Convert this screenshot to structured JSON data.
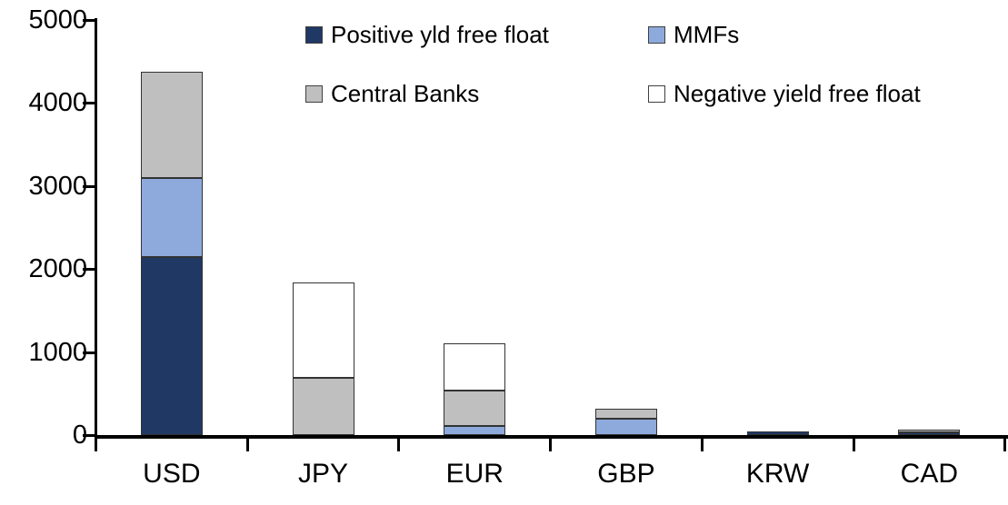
{
  "chart_data": {
    "type": "bar",
    "stacked": true,
    "title": "",
    "xlabel": "",
    "ylabel": "",
    "grid": false,
    "legend_position": "top",
    "categories": [
      "USD",
      "JPY",
      "EUR",
      "GBP",
      "KRW",
      "CAD"
    ],
    "series": [
      {
        "name": "Positive yld free float",
        "color": "#1F3864",
        "values": [
          2150,
          0,
          0,
          0,
          45,
          30
        ]
      },
      {
        "name": "MMFs",
        "color": "#8EAADC",
        "values": [
          950,
          0,
          110,
          200,
          0,
          0
        ]
      },
      {
        "name": "Central Banks",
        "color": "#BFBFBF",
        "values": [
          1280,
          690,
          425,
          115,
          0,
          35
        ]
      },
      {
        "name": "Negative yield free float",
        "color": "#FFFFFF",
        "values": [
          0,
          1145,
          565,
          0,
          0,
          0
        ]
      }
    ],
    "category_totals": [
      4380,
      1835,
      1100,
      315,
      45,
      65
    ],
    "y_ticks": [
      0,
      1000,
      2000,
      3000,
      4000,
      5000
    ],
    "ylim": [
      0,
      5000
    ],
    "axis_color": "#000000",
    "segment_border_color": "#333333"
  }
}
